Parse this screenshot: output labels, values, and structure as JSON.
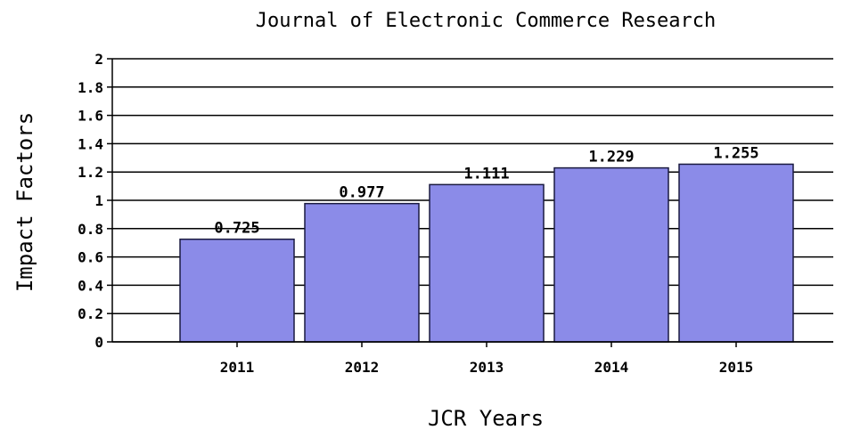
{
  "chart_data": {
    "type": "bar",
    "title": "Journal of Electronic Commerce Research",
    "xlabel": "JCR Years",
    "ylabel": "Impact Factors",
    "categories": [
      "2011",
      "2012",
      "2013",
      "2014",
      "2015"
    ],
    "values": [
      0.725,
      0.977,
      1.111,
      1.229,
      1.255
    ],
    "value_labels": [
      "0.725",
      "0.977",
      "1.111",
      "1.229",
      "1.255"
    ],
    "y_ticks": [
      "0",
      "0.2",
      "0.4",
      "0.6",
      "0.8",
      "1",
      "1.2",
      "1.4",
      "1.6",
      "1.8",
      "2"
    ],
    "ylim": [
      0,
      2
    ],
    "grid": true,
    "legend": "none",
    "colors": {
      "bar": "#8b8be8",
      "bar_edge": "#1a1a40",
      "axis": "#000000"
    }
  }
}
